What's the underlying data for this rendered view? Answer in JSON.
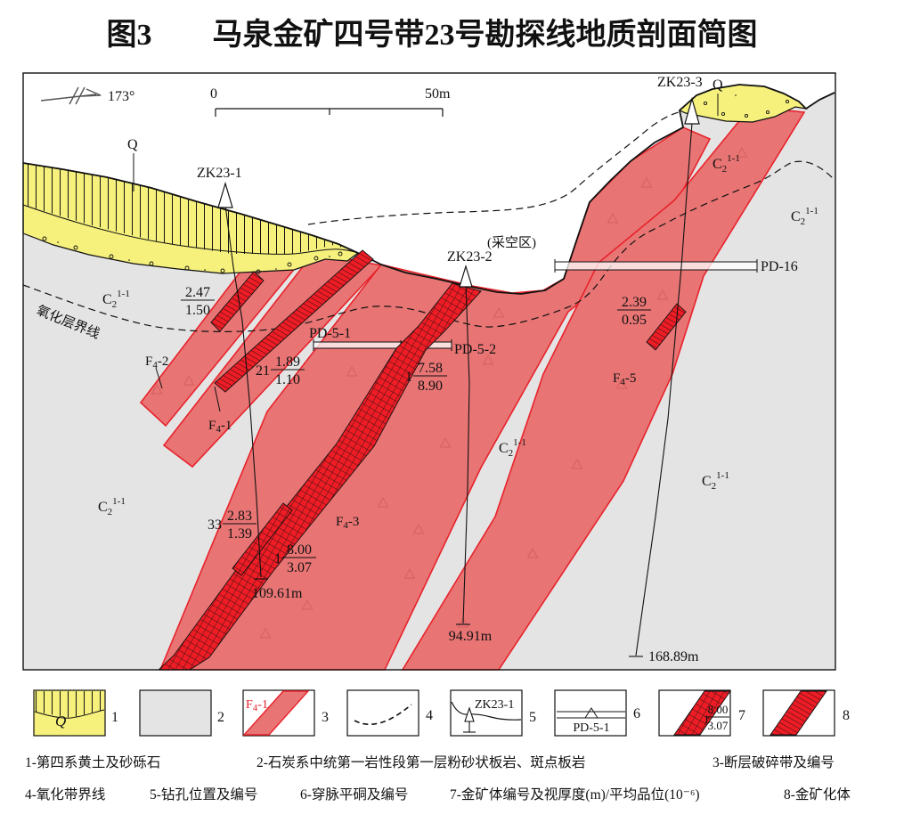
{
  "title": "图3　　马泉金矿四号带23号勘探线地质剖面简图",
  "colors": {
    "band_fill": "#E87474",
    "band_edge": "#E8232B",
    "ore_red": "#EE1C25",
    "quaternary_yellow": "#F6F17C",
    "bedrock_gray": "#E4E4E4",
    "line_black": "#111111"
  },
  "compass": {
    "bearing": "173°"
  },
  "scalebar": {
    "start": "0",
    "end": "50m"
  },
  "units": {
    "q": "Q",
    "c2": {
      "base": "C",
      "sub": "2",
      "sup": "1-1"
    }
  },
  "faults": {
    "f42": {
      "base": "F",
      "sub": "4",
      "suf": "-2"
    },
    "f41": {
      "base": "F",
      "sub": "4",
      "suf": "-1"
    },
    "f43": {
      "base": "F",
      "sub": "4",
      "suf": "-3"
    },
    "f45": {
      "base": "F",
      "sub": "4",
      "suf": "-5"
    }
  },
  "drills": {
    "zk1": {
      "id": "ZK23-1",
      "depth": "109.61m"
    },
    "zk2": {
      "id": "ZK23-2",
      "depth": "94.91m"
    },
    "zk3": {
      "id": "ZK23-3",
      "depth": "168.89m"
    }
  },
  "adits": {
    "pd51": "PD-5-1",
    "pd52": "PD-5-2",
    "pd16": "PD-16"
  },
  "notes": {
    "mined": "(采空区)",
    "oxidation": "氧化层界线"
  },
  "ore_labels": {
    "a247": {
      "pre": "",
      "num": "2.47",
      "den": "1.50"
    },
    "a189": {
      "pre": "21",
      "num": "1.89",
      "den": "1.10"
    },
    "a758": {
      "pre": "1",
      "num": "7.58",
      "den": "8.90"
    },
    "a283": {
      "pre": "33",
      "num": "2.83",
      "den": "1.39"
    },
    "a800": {
      "pre": "1",
      "num": "8.00",
      "den": "3.07"
    },
    "a239": {
      "pre": "",
      "num": "2.39",
      "den": "0.95"
    }
  },
  "legend": {
    "numbers": [
      "1",
      "2",
      "3",
      "4",
      "5",
      "6",
      "7",
      "8"
    ],
    "captions_row1": [
      "1-第四系黄土及砂砾石",
      "2-石炭系中统第一岩性段第一层粉砂状板岩、斑点板岩",
      "3-断层破碎带及编号"
    ],
    "captions_row2": [
      "4-氧化带界线",
      "5-钻孔位置及编号",
      "6-穿脉平硐及编号",
      "7-金矿体编号及视厚度(m)/平均品位(10⁻⁶)",
      "8-金矿化体"
    ]
  }
}
